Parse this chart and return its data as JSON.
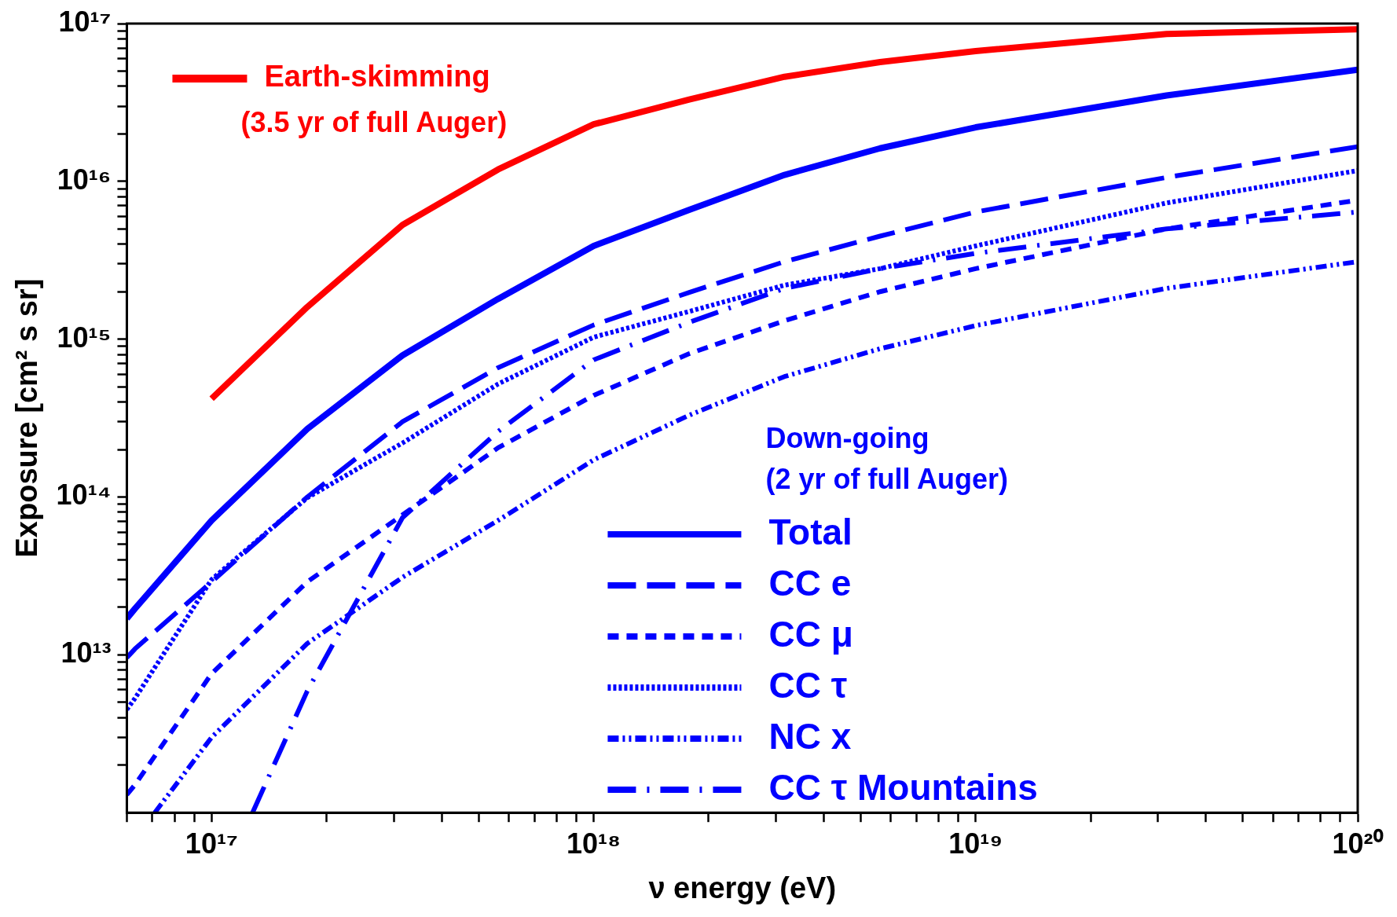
{
  "chart_data": {
    "type": "line",
    "xlabel": "ν energy (eV)",
    "ylabel": "Exposure [cm² s sr]",
    "log": "xy",
    "grid": false,
    "legend": "bottom",
    "marker": "none",
    "xlim": [
      6e+16,
      1e+20
    ],
    "ylim": [
      1000000000000.0,
      1e+17
    ],
    "xticks": [
      {
        "value": 6e+16,
        "label": null
      },
      {
        "value": 7e+16,
        "label": null
      },
      {
        "value": 8e+16,
        "label": null
      },
      {
        "value": 9e+16,
        "label": null
      },
      {
        "value": 1e+17,
        "label": "10¹⁷"
      },
      {
        "value": 2e+17,
        "label": null
      },
      {
        "value": 3e+17,
        "label": null
      },
      {
        "value": 4e+17,
        "label": null
      },
      {
        "value": 5e+17,
        "label": null
      },
      {
        "value": 6e+17,
        "label": null
      },
      {
        "value": 7e+17,
        "label": null
      },
      {
        "value": 8e+17,
        "label": null
      },
      {
        "value": 9e+17,
        "label": null
      },
      {
        "value": 1e+18,
        "label": "10¹⁸"
      },
      {
        "value": 2e+18,
        "label": null
      },
      {
        "value": 3e+18,
        "label": null
      },
      {
        "value": 4e+18,
        "label": null
      },
      {
        "value": 5e+18,
        "label": null
      },
      {
        "value": 6e+18,
        "label": null
      },
      {
        "value": 7e+18,
        "label": null
      },
      {
        "value": 8e+18,
        "label": null
      },
      {
        "value": 9e+18,
        "label": null
      },
      {
        "value": 1e+19,
        "label": "10¹⁹"
      },
      {
        "value": 2e+19,
        "label": null
      },
      {
        "value": 3e+19,
        "label": null
      },
      {
        "value": 4e+19,
        "label": null
      },
      {
        "value": 5e+19,
        "label": null
      },
      {
        "value": 6e+19,
        "label": null
      },
      {
        "value": 7e+19,
        "label": null
      },
      {
        "value": 8e+19,
        "label": null
      },
      {
        "value": 9e+19,
        "label": null
      },
      {
        "value": 1e+20,
        "label": "10²⁰"
      }
    ],
    "yticks": [
      {
        "value": 2000000000000.0,
        "label": null
      },
      {
        "value": 3000000000000.0,
        "label": null
      },
      {
        "value": 4000000000000.0,
        "label": null
      },
      {
        "value": 5000000000000.0,
        "label": null
      },
      {
        "value": 6000000000000.0,
        "label": null
      },
      {
        "value": 7000000000000.0,
        "label": null
      },
      {
        "value": 8000000000000.0,
        "label": null
      },
      {
        "value": 9000000000000.0,
        "label": null
      },
      {
        "value": 10000000000000.0,
        "label": "10¹³"
      },
      {
        "value": 20000000000000.0,
        "label": null
      },
      {
        "value": 30000000000000.0,
        "label": null
      },
      {
        "value": 40000000000000.0,
        "label": null
      },
      {
        "value": 50000000000000.0,
        "label": null
      },
      {
        "value": 60000000000000.0,
        "label": null
      },
      {
        "value": 70000000000000.0,
        "label": null
      },
      {
        "value": 80000000000000.0,
        "label": null
      },
      {
        "value": 90000000000000.0,
        "label": null
      },
      {
        "value": 100000000000000.0,
        "label": "10¹⁴"
      },
      {
        "value": 200000000000000.0,
        "label": null
      },
      {
        "value": 300000000000000.0,
        "label": null
      },
      {
        "value": 400000000000000.0,
        "label": null
      },
      {
        "value": 500000000000000.0,
        "label": null
      },
      {
        "value": 600000000000000.0,
        "label": null
      },
      {
        "value": 700000000000000.0,
        "label": null
      },
      {
        "value": 800000000000000.0,
        "label": null
      },
      {
        "value": 900000000000000.0,
        "label": null
      },
      {
        "value": 1000000000000000.0,
        "label": "10¹⁵"
      },
      {
        "value": 2000000000000000.0,
        "label": null
      },
      {
        "value": 3000000000000000.0,
        "label": null
      },
      {
        "value": 4000000000000000.0,
        "label": null
      },
      {
        "value": 5000000000000000.0,
        "label": null
      },
      {
        "value": 6000000000000000.0,
        "label": null
      },
      {
        "value": 7000000000000000.0,
        "label": null
      },
      {
        "value": 8000000000000000.0,
        "label": null
      },
      {
        "value": 9000000000000000.0,
        "label": null
      },
      {
        "value": 1e+16,
        "label": "10¹⁶"
      },
      {
        "value": 2e+16,
        "label": null
      },
      {
        "value": 3e+16,
        "label": null
      },
      {
        "value": 4e+16,
        "label": null
      },
      {
        "value": 5e+16,
        "label": null
      },
      {
        "value": 6e+16,
        "label": null
      },
      {
        "value": 7e+16,
        "label": null
      },
      {
        "value": 8e+16,
        "label": null
      },
      {
        "value": 9e+16,
        "label": null
      },
      {
        "value": 1e+17,
        "label": "10¹⁷"
      }
    ],
    "annotations": [
      "(3.5 yr of full Auger)",
      "Down-going",
      "(2 yr of full Auger)"
    ],
    "series": [
      {
        "name": "Earth-skimming",
        "color": "#ff0000",
        "line_style": "solid",
        "x": [
          1e+17,
          1.78e+17,
          3.16e+17,
          5.62e+17,
          1e+18,
          1.78e+18,
          3.16e+18,
          5.62e+18,
          1e+19,
          3.16e+19,
          1e+20
        ],
        "values": [
          420000000000000.0,
          1600000000000000.0,
          5300000000000000.0,
          1.19e+16,
          2.3e+16,
          3.3e+16,
          4.6e+16,
          5.7e+16,
          6.7e+16,
          8.6e+16,
          9.2e+16
        ]
      },
      {
        "name": "Total",
        "color": "#0000ff",
        "line_style": "solid",
        "x": [
          6e+16,
          6.3e+16,
          1e+17,
          1.78e+17,
          3.16e+17,
          5.62e+17,
          1e+18,
          1.78e+18,
          3.16e+18,
          5.62e+18,
          1e+19,
          3.16e+19,
          1e+20
        ],
        "values": [
          17000000000000.0,
          19600000000000.0,
          71000000000000.0,
          270000000000000.0,
          790000000000000.0,
          1800000000000000.0,
          3900000000000000.0,
          6600000000000000.0,
          1.1e+16,
          1.62e+16,
          2.2e+16,
          3.5e+16,
          5.1e+16
        ]
      },
      {
        "name": "CC e",
        "color": "#0000ff",
        "line_style": "longdash",
        "x": [
          6e+16,
          6.3e+16,
          1e+17,
          1.78e+17,
          3.16e+17,
          5.62e+17,
          1e+18,
          1.78e+18,
          3.16e+18,
          5.62e+18,
          1e+19,
          3.16e+19,
          1e+20
        ],
        "values": [
          9600000000000.0,
          10900000000000.0,
          29000000000000.0,
          100000000000000.0,
          300000000000000.0,
          660000000000000.0,
          1230000000000000.0,
          1980000000000000.0,
          3100000000000000.0,
          4500000000000000.0,
          6400000000000000.0,
          1.06e+16,
          1.66e+16
        ]
      },
      {
        "name": "CC μ",
        "color": "#0000ff",
        "line_style": "dashed",
        "x": [
          6e+16,
          6.3e+16,
          1e+17,
          1.78e+17,
          3.16e+17,
          5.62e+17,
          1e+18,
          1.78e+18,
          3.16e+18,
          5.62e+18,
          1e+19,
          3.16e+19,
          1e+20
        ],
        "values": [
          1300000000000.0,
          1500000000000.0,
          7600000000000.0,
          29000000000000.0,
          77000000000000.0,
          205000000000000.0,
          440000000000000.0,
          810000000000000.0,
          1310000000000000.0,
          2000000000000000.0,
          2800000000000000.0,
          5000000000000000.0,
          7600000000000000.0
        ]
      },
      {
        "name": "CC τ",
        "color": "#0000ff",
        "line_style": "dotted",
        "x": [
          6e+16,
          6.3e+16,
          1e+17,
          1.78e+17,
          3.16e+17,
          5.62e+17,
          1e+18,
          1.78e+18,
          3.16e+18,
          5.62e+18,
          1e+19,
          3.16e+19,
          1e+20
        ],
        "values": [
          4500000000000.0,
          5300000000000.0,
          30000000000000.0,
          99000000000000.0,
          220000000000000.0,
          520000000000000.0,
          1030000000000000.0,
          1500000000000000.0,
          2200000000000000.0,
          2800000000000000.0,
          3900000000000000.0,
          7300000000000000.0,
          1.17e+16
        ]
      },
      {
        "name": "NC x",
        "color": "#0000ff",
        "line_style": "dashdotdot",
        "x": [
          7.1e+16,
          1e+17,
          1.78e+17,
          3.16e+17,
          5.62e+17,
          1e+18,
          1.78e+18,
          3.16e+18,
          5.62e+18,
          1e+19,
          3.16e+19,
          1e+20
        ],
        "values": [
          1000000000000.0,
          3000000000000.0,
          11800000000000.0,
          31000000000000.0,
          71000000000000.0,
          172000000000000.0,
          330000000000000.0,
          580000000000000.0,
          870000000000000.0,
          1220000000000000.0,
          2100000000000000.0,
          3100000000000000.0
        ]
      },
      {
        "name": "CC τ Mountains",
        "color": "#0000ff",
        "line_style": "dashdot",
        "x": [
          1.28e+17,
          1.78e+17,
          3.16e+17,
          5.62e+17,
          1e+18,
          1.78e+18,
          3.16e+18,
          5.62e+18,
          1e+19,
          3.16e+19,
          1e+20
        ],
        "values": [
          1000000000000.0,
          5900000000000.0,
          74000000000000.0,
          260000000000000.0,
          740000000000000.0,
          1280000000000000.0,
          2100000000000000.0,
          2800000000000000.0,
          3500000000000000.0,
          5000000000000000.0,
          6400000000000000.0
        ]
      }
    ]
  }
}
